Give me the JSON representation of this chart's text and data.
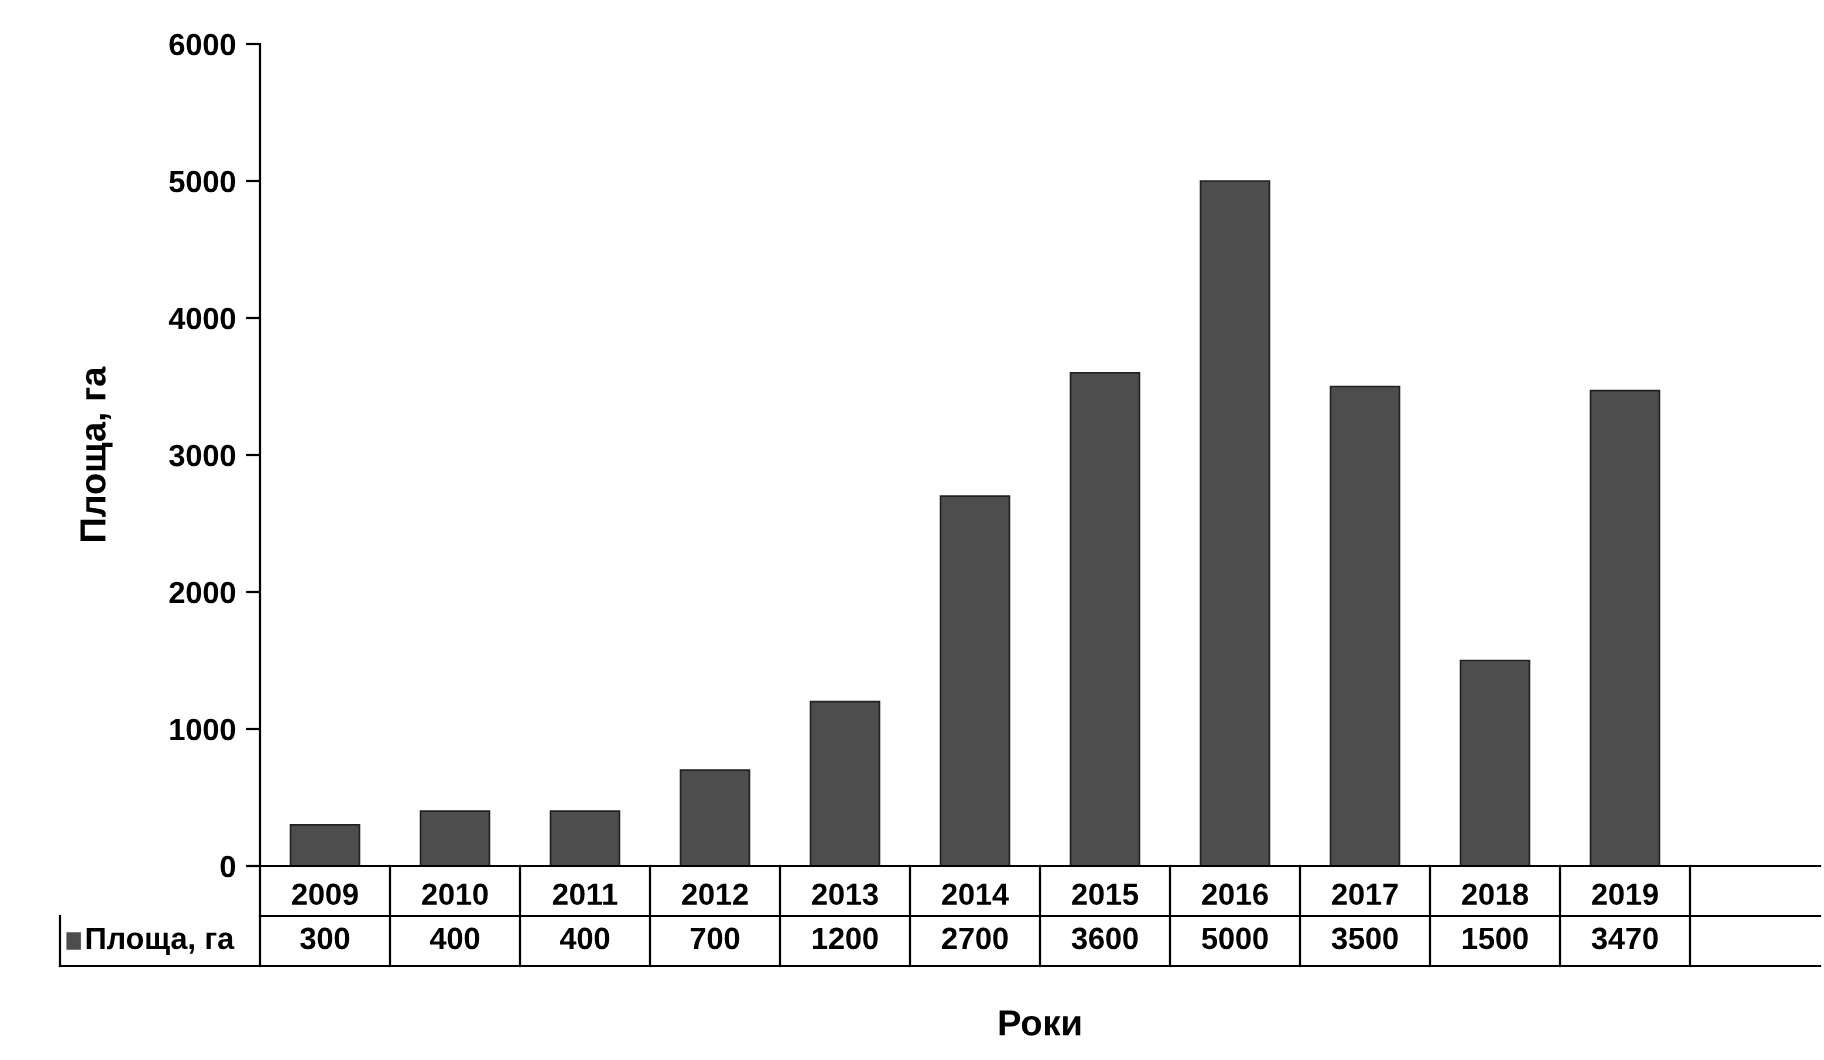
{
  "chart_data": {
    "type": "bar",
    "xlabel": "Роки",
    "ylabel": "Площа, га",
    "categories": [
      "2009",
      "2010",
      "2011",
      "2012",
      "2013",
      "2014",
      "2015",
      "2016",
      "2017",
      "2018",
      "2019"
    ],
    "series": [
      {
        "name": "Площа, га",
        "color": "#4d4d4d",
        "values": [
          300,
          400,
          400,
          700,
          1200,
          2700,
          3600,
          5000,
          3500,
          1500,
          3470
        ]
      }
    ],
    "ylim": [
      0,
      6000
    ],
    "yticks": [
      0,
      1000,
      2000,
      3000,
      4000,
      5000,
      6000
    ],
    "data_labels": true,
    "legend": "bottom",
    "grid": false
  }
}
